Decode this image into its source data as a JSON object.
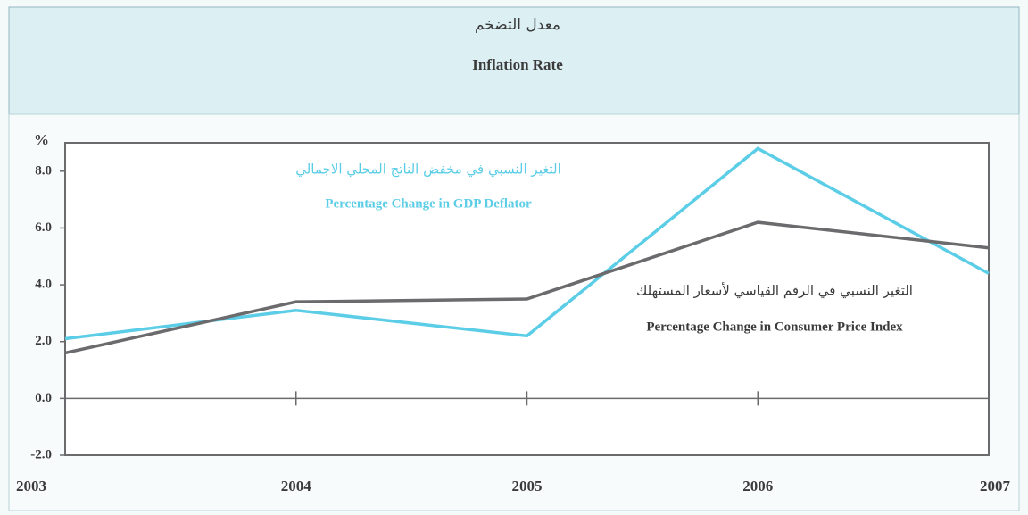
{
  "chart_data": {
    "type": "line",
    "title_ar": "معدل التضخم",
    "title": "Inflation Rate",
    "y_label": "%",
    "x": [
      2003,
      2004,
      2005,
      2006,
      2007
    ],
    "xlim": [
      2003,
      2007
    ],
    "xticks": [
      2003,
      2004,
      2005,
      2006,
      2007
    ],
    "ylim": [
      -2,
      9
    ],
    "yticks": [
      {
        "value": -2,
        "label": "-2.0"
      },
      {
        "value": 0,
        "label": "0.0"
      },
      {
        "value": 2,
        "label": "2.0"
      },
      {
        "value": 4,
        "label": "4.0"
      },
      {
        "value": 6,
        "label": "6.0"
      },
      {
        "value": 8,
        "label": "8.0"
      }
    ],
    "series": [
      {
        "name": "Percentage Change in GDP Deflator",
        "name_ar": "التغير النسبي في مخفض الناتج المحلي الاجمالي",
        "color": "#5ccde6",
        "values": [
          2.1,
          3.1,
          2.2,
          8.8,
          4.4
        ]
      },
      {
        "name": "Percentage Change in Consumer Price Index",
        "name_ar": "التغير النسبي في الرقم القياسي لأسعار المستهلك",
        "color": "#6b6b6e",
        "values": [
          1.6,
          3.4,
          3.5,
          6.2,
          5.3
        ]
      }
    ]
  }
}
